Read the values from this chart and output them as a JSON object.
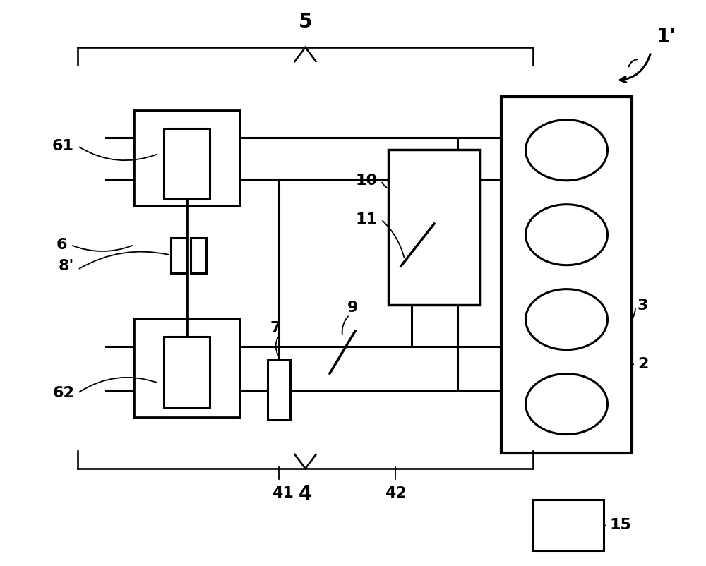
{
  "bg_color": "#ffffff",
  "line_color": "#000000",
  "lw": 2.2,
  "labels": {
    "1prime": "1'",
    "2": "2",
    "3": "3",
    "4": "4",
    "5": "5",
    "6": "6",
    "7": "7",
    "8prime": "8'",
    "9": "9",
    "10": "10",
    "11": "11",
    "15": "15",
    "41": "41",
    "42": "42",
    "61": "61",
    "62": "62"
  },
  "label_fontsize": 16
}
